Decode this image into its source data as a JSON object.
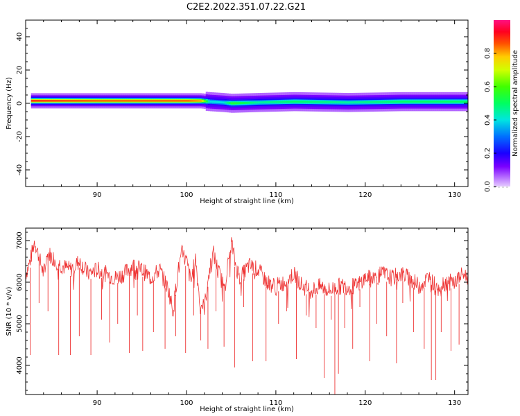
{
  "title": "C2E2.2022.351.07.22.G21",
  "chart_data": [
    {
      "type": "heatmap",
      "xlabel": "Height of straight line (km)",
      "ylabel": "Frequency (Hz)",
      "xlim": [
        82,
        131.5
      ],
      "ylim": [
        -50,
        50
      ],
      "xticks": [
        90,
        100,
        110,
        120,
        130
      ],
      "yticks": [
        40,
        20,
        0,
        -20,
        -40
      ],
      "colorbar": {
        "label": "Normalized spectral amplitude",
        "ticks": [
          "0.0",
          "0.2",
          "0.4",
          "0.6",
          "0.8"
        ],
        "range": [
          0,
          1
        ]
      },
      "ridge": [
        {
          "x": 82.6,
          "freq": 1.5,
          "amp": 0.9
        },
        {
          "x": 90,
          "freq": 1.5,
          "amp": 0.85
        },
        {
          "x": 100,
          "freq": 1.5,
          "amp": 0.85
        },
        {
          "x": 101.5,
          "freq": 1.5,
          "amp": 0.8
        },
        {
          "x": 102.5,
          "freq": 1.0,
          "amp": 0.4
        },
        {
          "x": 104,
          "freq": 0.5,
          "amp": 0.4
        },
        {
          "x": 105,
          "freq": 0,
          "amp": 0.55
        },
        {
          "x": 108,
          "freq": 0.5,
          "amp": 0.45
        },
        {
          "x": 112,
          "freq": 1.0,
          "amp": 0.5
        },
        {
          "x": 118,
          "freq": 0.5,
          "amp": 0.45
        },
        {
          "x": 124,
          "freq": 1.0,
          "amp": 0.5
        },
        {
          "x": 131.5,
          "freq": 1.0,
          "amp": 0.5
        }
      ]
    },
    {
      "type": "line",
      "xlabel": "Height of straight line (km)",
      "ylabel": "SNR (10 * v/v)",
      "xlim": [
        82,
        131.5
      ],
      "ylim": [
        3300,
        7300
      ],
      "xticks": [
        90,
        100,
        110,
        120,
        130
      ],
      "yticks": [
        4000,
        5000,
        6000,
        7000
      ],
      "color": "#ee3333",
      "series": [
        {
          "x": [
            82,
            82.5,
            83,
            83.5,
            84,
            84.5,
            85,
            86,
            87,
            88,
            89,
            90,
            91,
            92,
            93,
            94,
            95,
            96,
            97,
            98,
            98.5,
            99,
            99.5,
            100,
            100.5,
            101,
            101.5,
            102,
            102.5,
            103,
            103.5,
            104,
            104.5,
            105,
            105.5,
            106,
            107,
            108,
            109,
            110,
            111,
            112,
            113,
            114,
            115,
            116,
            117,
            118,
            119,
            120,
            121,
            122,
            123,
            124,
            125,
            126,
            127,
            128,
            129,
            130,
            131,
            131.5
          ],
          "values": [
            6200,
            6500,
            7000,
            6600,
            6200,
            6700,
            6600,
            6400,
            6300,
            6500,
            6200,
            6300,
            6200,
            6100,
            6200,
            6400,
            6300,
            6100,
            6300,
            5800,
            5300,
            6200,
            6700,
            6500,
            6000,
            6600,
            5500,
            5400,
            6200,
            6700,
            6300,
            6000,
            6200,
            7000,
            6400,
            6100,
            6400,
            6300,
            6000,
            5900,
            6000,
            6200,
            5900,
            5800,
            5900,
            5800,
            5900,
            5900,
            5900,
            6100,
            6100,
            6200,
            6100,
            6200,
            6100,
            5900,
            6100,
            5900,
            6000,
            6000,
            6200,
            6100
          ],
          "dips": [
            {
              "x": 82.5,
              "y": 4250
            },
            {
              "x": 83.5,
              "y": 5500
            },
            {
              "x": 84.5,
              "y": 5300
            },
            {
              "x": 85.7,
              "y": 4250
            },
            {
              "x": 87.0,
              "y": 4250
            },
            {
              "x": 88.0,
              "y": 4700
            },
            {
              "x": 89.3,
              "y": 4250
            },
            {
              "x": 90.5,
              "y": 5100
            },
            {
              "x": 91.4,
              "y": 4550
            },
            {
              "x": 92.3,
              "y": 5000
            },
            {
              "x": 93.6,
              "y": 4300
            },
            {
              "x": 94.5,
              "y": 5200
            },
            {
              "x": 95.1,
              "y": 4350
            },
            {
              "x": 96.3,
              "y": 4800
            },
            {
              "x": 97.6,
              "y": 4400
            },
            {
              "x": 98.8,
              "y": 4700
            },
            {
              "x": 99.9,
              "y": 4300
            },
            {
              "x": 100.8,
              "y": 5200
            },
            {
              "x": 101.6,
              "y": 4600
            },
            {
              "x": 102.4,
              "y": 4400
            },
            {
              "x": 103.3,
              "y": 5300
            },
            {
              "x": 104.2,
              "y": 4450
            },
            {
              "x": 105.4,
              "y": 3950
            },
            {
              "x": 106.4,
              "y": 5400
            },
            {
              "x": 107.4,
              "y": 4100
            },
            {
              "x": 108.9,
              "y": 4100
            },
            {
              "x": 110.3,
              "y": 5000
            },
            {
              "x": 111.2,
              "y": 5300
            },
            {
              "x": 112.3,
              "y": 4150
            },
            {
              "x": 113.4,
              "y": 5200
            },
            {
              "x": 114.5,
              "y": 4900
            },
            {
              "x": 115.4,
              "y": 3700
            },
            {
              "x": 116.2,
              "y": 5100
            },
            {
              "x": 116.6,
              "y": 3300
            },
            {
              "x": 117.0,
              "y": 3800
            },
            {
              "x": 117.7,
              "y": 4900
            },
            {
              "x": 118.6,
              "y": 4400
            },
            {
              "x": 119.4,
              "y": 5400
            },
            {
              "x": 120.5,
              "y": 4100
            },
            {
              "x": 121.3,
              "y": 5000
            },
            {
              "x": 122.4,
              "y": 4700
            },
            {
              "x": 123.5,
              "y": 4050
            },
            {
              "x": 124.2,
              "y": 5500
            },
            {
              "x": 125.4,
              "y": 4800
            },
            {
              "x": 126.6,
              "y": 4400
            },
            {
              "x": 127.4,
              "y": 3650
            },
            {
              "x": 127.9,
              "y": 3650
            },
            {
              "x": 128.5,
              "y": 4800
            },
            {
              "x": 129.6,
              "y": 4350
            },
            {
              "x": 130.5,
              "y": 4500
            }
          ]
        }
      ]
    }
  ]
}
